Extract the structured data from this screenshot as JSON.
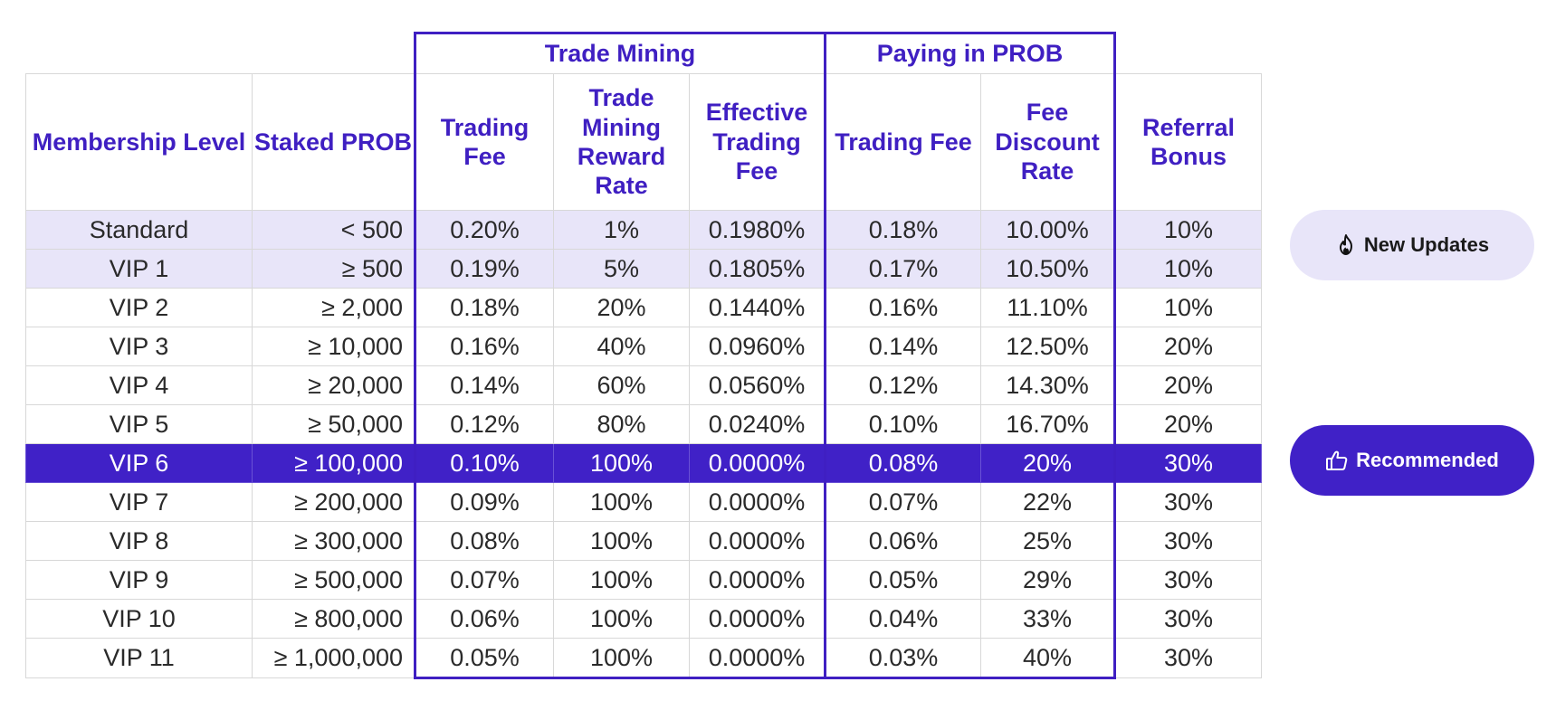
{
  "table": {
    "groups": {
      "trade_mining": "Trade Mining",
      "paying_in_prob": "Paying in PROB"
    },
    "headers": {
      "membership_level": "Membership Level",
      "staked_prob": "Staked PROB",
      "tm_trading_fee": "Trading Fee",
      "tm_reward_rate": "Trade Mining Reward Rate",
      "tm_effective_fee": "Effective Trading Fee",
      "pp_trading_fee": "Trading Fee",
      "pp_discount_rate": "Fee Discount Rate",
      "referral_bonus": "Referral Bonus"
    },
    "rows": [
      {
        "level": "Standard",
        "staked": "< 500",
        "tm_fee": "0.20%",
        "tm_reward": "1%",
        "tm_effective": "0.1980%",
        "pp_fee": "0.18%",
        "pp_discount": "10.00%",
        "referral": "10%"
      },
      {
        "level": "VIP 1",
        "staked": "≥ 500",
        "tm_fee": "0.19%",
        "tm_reward": "5%",
        "tm_effective": "0.1805%",
        "pp_fee": "0.17%",
        "pp_discount": "10.50%",
        "referral": "10%"
      },
      {
        "level": "VIP 2",
        "staked": "≥ 2,000",
        "tm_fee": "0.18%",
        "tm_reward": "20%",
        "tm_effective": "0.1440%",
        "pp_fee": "0.16%",
        "pp_discount": "11.10%",
        "referral": "10%"
      },
      {
        "level": "VIP 3",
        "staked": "≥ 10,000",
        "tm_fee": "0.16%",
        "tm_reward": "40%",
        "tm_effective": "0.0960%",
        "pp_fee": "0.14%",
        "pp_discount": "12.50%",
        "referral": "20%"
      },
      {
        "level": "VIP 4",
        "staked": "≥ 20,000",
        "tm_fee": "0.14%",
        "tm_reward": "60%",
        "tm_effective": "0.0560%",
        "pp_fee": "0.12%",
        "pp_discount": "14.30%",
        "referral": "20%"
      },
      {
        "level": "VIP 5",
        "staked": "≥ 50,000",
        "tm_fee": "0.12%",
        "tm_reward": "80%",
        "tm_effective": "0.0240%",
        "pp_fee": "0.10%",
        "pp_discount": "16.70%",
        "referral": "20%"
      },
      {
        "level": "VIP 6",
        "staked": "≥ 100,000",
        "tm_fee": "0.10%",
        "tm_reward": "100%",
        "tm_effective": "0.0000%",
        "pp_fee": "0.08%",
        "pp_discount": "20%",
        "referral": "30%"
      },
      {
        "level": "VIP 7",
        "staked": "≥ 200,000",
        "tm_fee": "0.09%",
        "tm_reward": "100%",
        "tm_effective": "0.0000%",
        "pp_fee": "0.07%",
        "pp_discount": "22%",
        "referral": "30%"
      },
      {
        "level": "VIP 8",
        "staked": "≥ 300,000",
        "tm_fee": "0.08%",
        "tm_reward": "100%",
        "tm_effective": "0.0000%",
        "pp_fee": "0.06%",
        "pp_discount": "25%",
        "referral": "30%"
      },
      {
        "level": "VIP 9",
        "staked": "≥ 500,000",
        "tm_fee": "0.07%",
        "tm_reward": "100%",
        "tm_effective": "0.0000%",
        "pp_fee": "0.05%",
        "pp_discount": "29%",
        "referral": "30%"
      },
      {
        "level": "VIP 10",
        "staked": "≥ 800,000",
        "tm_fee": "0.06%",
        "tm_reward": "100%",
        "tm_effective": "0.0000%",
        "pp_fee": "0.04%",
        "pp_discount": "33%",
        "referral": "30%"
      },
      {
        "level": "VIP 11",
        "staked": "≥ 1,000,000",
        "tm_fee": "0.05%",
        "tm_reward": "100%",
        "tm_effective": "0.0000%",
        "pp_fee": "0.03%",
        "pp_discount": "40%",
        "referral": "30%"
      }
    ],
    "highlighted_rows": [
      "Standard",
      "VIP 1"
    ],
    "recommended_row": "VIP 6"
  },
  "badges": {
    "new_updates": {
      "label": "New Updates",
      "icon": "fire-icon"
    },
    "recommended": {
      "label": "Recommended",
      "icon": "thumbs-up-icon"
    }
  },
  "colors": {
    "accent": "#4021c7",
    "highlight": "#e8e5f9",
    "border": "#d8d8d8",
    "text": "#2a2a2a"
  }
}
